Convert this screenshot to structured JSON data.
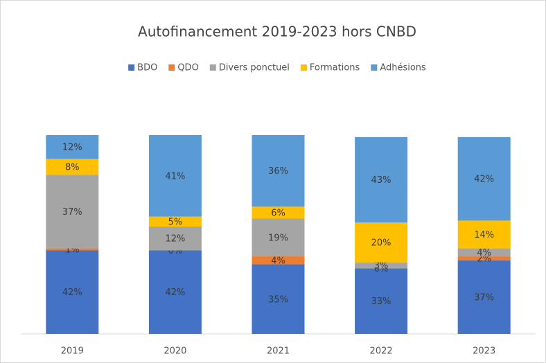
{
  "chart_data": {
    "type": "stacked_bar",
    "title": "Autofinancement 2019-2023 hors CNBD",
    "categories": [
      "2019",
      "2020",
      "2021",
      "2022",
      "2023"
    ],
    "series": [
      {
        "name": "BDO",
        "color": "#4472c4",
        "values": [
          42,
          42,
          35,
          33,
          37
        ],
        "value_labels": [
          "42%",
          "42%",
          "35%",
          "33%",
          "37%"
        ]
      },
      {
        "name": "QDO",
        "color": "#ed7d31",
        "values": [
          1,
          0,
          4,
          0,
          2
        ],
        "value_labels": [
          "1%",
          "0%",
          "4%",
          "0%",
          "2%"
        ]
      },
      {
        "name": "Divers ponctuel",
        "color": "#a5a5a5",
        "values": [
          37,
          12,
          19,
          3,
          4
        ],
        "value_labels": [
          "37%",
          "12%",
          "19%",
          "3%",
          "4%"
        ]
      },
      {
        "name": "Formations",
        "color": "#ffc000",
        "values": [
          8,
          5,
          6,
          20,
          14
        ],
        "value_labels": [
          "8%",
          "5%",
          "6%",
          "20%",
          "14%"
        ]
      },
      {
        "name": "Adhésions",
        "color": "#5b9bd5",
        "values": [
          12,
          41,
          36,
          43,
          42
        ],
        "value_labels": [
          "12%",
          "41%",
          "36%",
          "43%",
          "42%"
        ]
      }
    ],
    "ylim": [
      0,
      100
    ],
    "legend": "top"
  }
}
